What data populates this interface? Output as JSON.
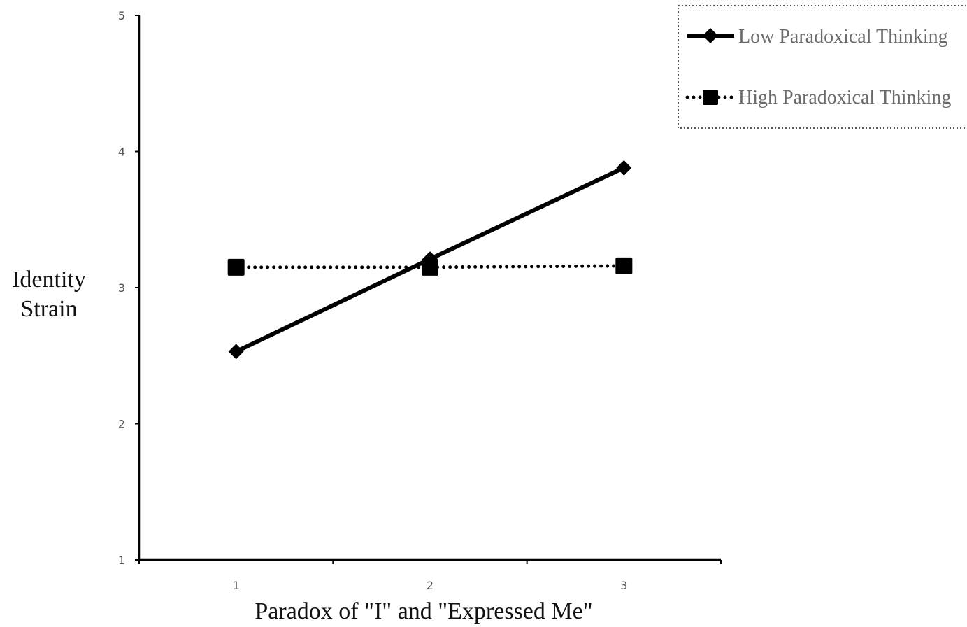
{
  "chart_data": {
    "type": "line",
    "title": "",
    "xlabel": "Paradox of \"I\" and \"Expressed Me\"",
    "ylabel_lines": [
      "Identity",
      "Strain"
    ],
    "x": [
      1,
      2,
      3
    ],
    "x_tick_labels": [
      "1",
      "2",
      "3"
    ],
    "xlim": [
      0.5,
      3.5
    ],
    "ylim": [
      1,
      5
    ],
    "y_ticks": [
      1,
      2,
      3,
      4,
      5
    ],
    "y_tick_labels": [
      "1",
      "2",
      "3",
      "4",
      "5"
    ],
    "grid": false,
    "legend_position": "top-right",
    "series": [
      {
        "name": "Low Paradoxical Thinking",
        "values": [
          2.53,
          3.21,
          3.88
        ],
        "line_style": "solid",
        "marker": "diamond",
        "color": "#000000"
      },
      {
        "name": "High Paradoxical Thinking",
        "values": [
          3.15,
          3.15,
          3.16
        ],
        "line_style": "dotted",
        "marker": "square",
        "color": "#000000"
      }
    ]
  }
}
